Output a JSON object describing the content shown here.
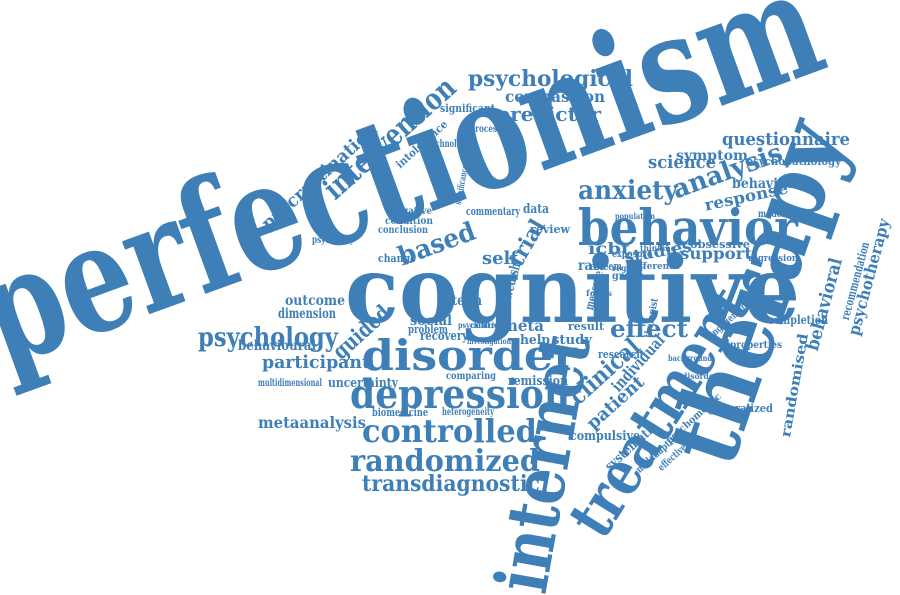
{
  "word_cloud": {
    "color": "#3f7fb8",
    "words": [
      "perfectionism",
      "cognitive",
      "therapy",
      "internet",
      "treatment",
      "behavior",
      "disorder",
      "depression",
      "controlled",
      "randomized",
      "transdiagnostic",
      "psychological",
      "intervention",
      "procrastination",
      "psychology",
      "anxiety",
      "analysis",
      "questionnaire",
      "based",
      "effect",
      "clinical",
      "patient",
      "individual",
      "participant",
      "guided",
      "outcome",
      "dimension",
      "behavioural",
      "metaanalysis",
      "uncertainty",
      "remission",
      "compassion",
      "predictor",
      "significant",
      "intolerance",
      "processes",
      "technology",
      "science",
      "symptom",
      "psychopathology",
      "behaviour",
      "response",
      "moderation",
      "obsessive",
      "support",
      "studies",
      "recommendation",
      "psychotherapy",
      "completion",
      "behavioral",
      "randomised",
      "compulsive",
      "systematic",
      "maladaptive",
      "effectiveness",
      "psychometric",
      "generalized",
      "properties",
      "engagement",
      "therapist",
      "research",
      "study",
      "help",
      "meta",
      "social",
      "recovery",
      "problem",
      "biomedicine",
      "heterogeneity",
      "comparing",
      "multidimensional",
      "self",
      "trial",
      "data",
      "review",
      "commentary",
      "negative",
      "condition",
      "conclusion",
      "psychiatry",
      "change",
      "term",
      "swedish",
      "icbt",
      "rate",
      "esteem",
      "measure",
      "result",
      "exposure",
      "group",
      "difference",
      "regression",
      "significance",
      "background",
      "focus",
      "population",
      "control",
      "investigation",
      "psychiatric",
      "regular",
      "thinking",
      "disorders"
    ]
  }
}
